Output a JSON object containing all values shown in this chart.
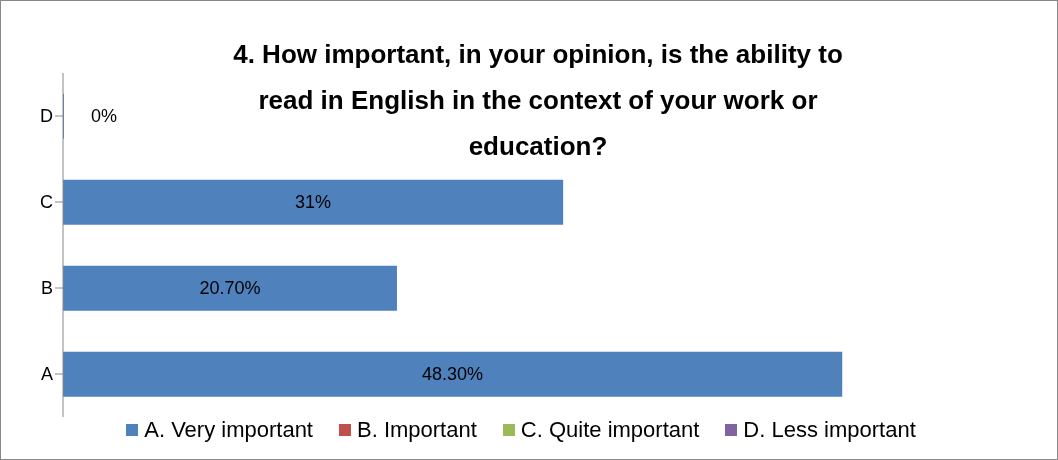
{
  "chart_data": {
    "type": "bar",
    "orientation": "horizontal",
    "title": "4. How important, in your opinion, is the ability to read in English in the context of your work or education?",
    "categories": [
      "D",
      "C",
      "B",
      "A"
    ],
    "series": [
      {
        "name": "A. Very important",
        "color": "#4f81bd",
        "values": [
          0,
          31,
          20.7,
          48.3
        ],
        "value_labels": [
          "0%",
          "31%",
          "20.70%",
          "48.30%"
        ]
      },
      {
        "name": "B. Important",
        "color": "#c0504d",
        "values": [
          null,
          null,
          null,
          null
        ]
      },
      {
        "name": "C. Quite important",
        "color": "#9bbb59",
        "values": [
          null,
          null,
          null,
          null
        ]
      },
      {
        "name": "D. Less important",
        "color": "#8064a2",
        "values": [
          null,
          null,
          null,
          null
        ]
      }
    ],
    "legend": "bottom",
    "grid": false
  }
}
